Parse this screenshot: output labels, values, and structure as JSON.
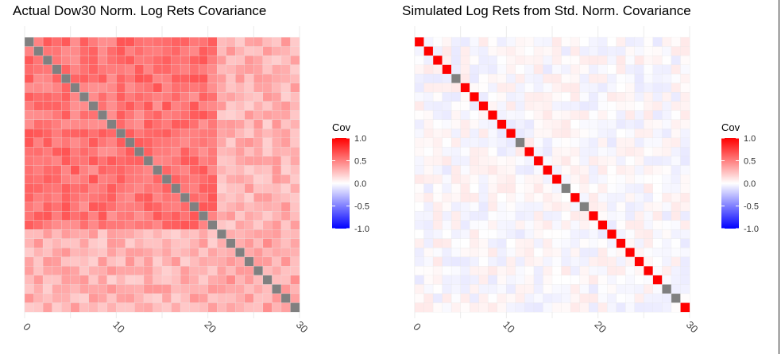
{
  "chart_data": [
    {
      "type": "heatmap",
      "title": "Actual Dow30 Norm. Log Rets Covariance",
      "n": 30,
      "x_ticks": [
        "0",
        "10",
        "20",
        "30"
      ],
      "x_tick_values": [
        0,
        10,
        20,
        30
      ],
      "legend_title": "Cov",
      "legend_ticks": [
        "1.0",
        "0.5",
        "0.0",
        "-0.5",
        "-1.0"
      ],
      "legend_tick_values": [
        1.0,
        0.5,
        0.0,
        -0.5,
        -1.0
      ],
      "color_scale": {
        "low": "#0000ff",
        "mid": "#ffffff",
        "high": "#ff0000",
        "limits": [
          -1,
          1
        ]
      },
      "diagonal_color": "#808080",
      "group_split": 21,
      "within_group1": 0.55,
      "within_group2": 0.35,
      "cross_group": 0.3,
      "noise": 0.12,
      "seed": 7
    },
    {
      "type": "heatmap",
      "title": "Simulated Log Rets from Std. Norm. Covariance",
      "n": 30,
      "x_ticks": [
        "0",
        "10",
        "20",
        "30"
      ],
      "x_tick_values": [
        0,
        10,
        20,
        30
      ],
      "legend_title": "Cov",
      "legend_ticks": [
        "1.0",
        "0.5",
        "0.0",
        "-0.5",
        "-1.0"
      ],
      "legend_tick_values": [
        1.0,
        0.5,
        0.0,
        -0.5,
        -1.0
      ],
      "color_scale": {
        "low": "#0000ff",
        "mid": "#ffffff",
        "high": "#ff0000",
        "limits": [
          -1,
          1
        ]
      },
      "diagonal_color": "#808080",
      "diagonal_pattern": [
        1,
        1,
        1,
        1,
        0,
        1,
        1,
        1,
        1,
        1,
        1,
        0,
        1,
        1,
        1,
        1,
        0,
        1,
        0,
        1,
        1,
        1,
        1,
        1,
        1,
        1,
        1,
        0,
        0,
        1
      ],
      "noise": 0.09,
      "seed": 13
    }
  ]
}
